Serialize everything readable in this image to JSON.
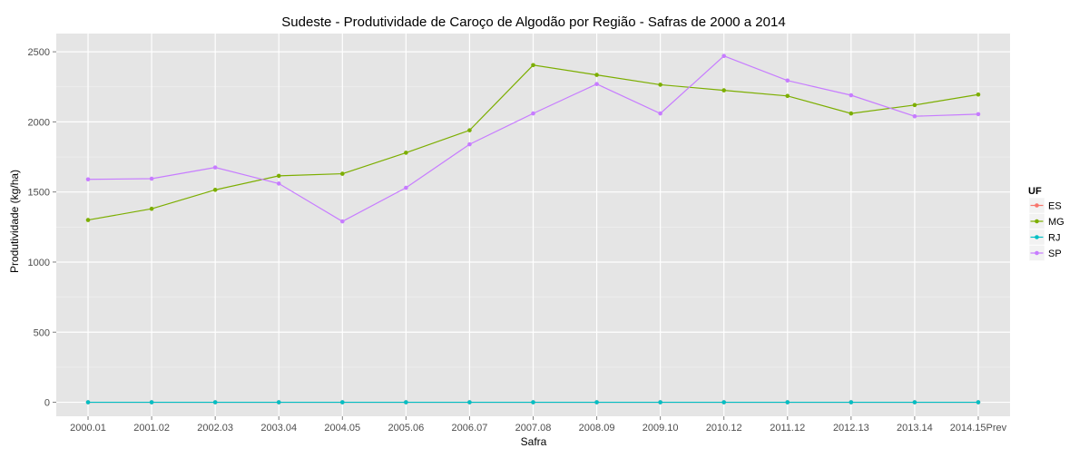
{
  "chart_data": {
    "type": "line",
    "title": "Sudeste  - Produtividade de Caroço de Algodão por Região - Safras de 2000 a 2014",
    "xlabel": "Safra",
    "ylabel": "Produtividade (kg/ha)",
    "categories": [
      "2000.01",
      "2001.02",
      "2002.03",
      "2003.04",
      "2004.05",
      "2005.06",
      "2006.07",
      "2007.08",
      "2008.09",
      "2009.10",
      "2010.12",
      "2011.12",
      "2012.13",
      "2013.14",
      "2014.15Prev"
    ],
    "y_ticks": [
      0,
      500,
      1000,
      1500,
      2000,
      2500
    ],
    "ylim": [
      -100,
      2630
    ],
    "grid": true,
    "legend": {
      "title": "UF",
      "placement": "right"
    },
    "series": [
      {
        "name": "ES",
        "color": "#F8766D",
        "values": [
          0,
          0,
          0,
          0,
          0,
          0,
          0,
          0,
          0,
          0,
          0,
          0,
          0,
          0,
          0
        ]
      },
      {
        "name": "MG",
        "color": "#7CAE00",
        "values": [
          1300,
          1380,
          1515,
          1615,
          1630,
          1780,
          1940,
          2405,
          2335,
          2265,
          2225,
          2185,
          2060,
          2120,
          2195
        ]
      },
      {
        "name": "RJ",
        "color": "#00BFC4",
        "values": [
          0,
          0,
          0,
          0,
          0,
          0,
          0,
          0,
          0,
          0,
          0,
          0,
          0,
          0,
          0
        ]
      },
      {
        "name": "SP",
        "color": "#C77CFF",
        "values": [
          1590,
          1595,
          1675,
          1560,
          1290,
          1530,
          1840,
          2060,
          2270,
          2060,
          2470,
          2295,
          2190,
          2040,
          2055
        ]
      }
    ]
  }
}
